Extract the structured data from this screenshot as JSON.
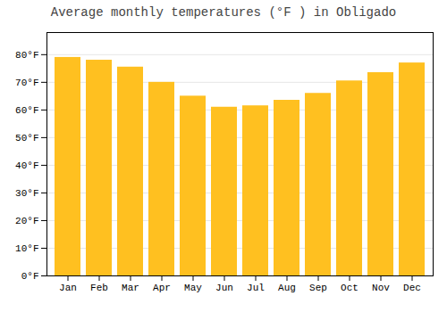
{
  "chart_data": {
    "type": "bar",
    "title": "Average monthly temperatures (°F ) in Obligado",
    "categories": [
      "Jan",
      "Feb",
      "Mar",
      "Apr",
      "May",
      "Jun",
      "Jul",
      "Aug",
      "Sep",
      "Oct",
      "Nov",
      "Dec"
    ],
    "values": [
      79,
      78,
      75.5,
      70,
      65,
      61,
      61.5,
      63.5,
      66,
      70.5,
      73.5,
      77
    ],
    "color": "#FFC020",
    "ylim": [
      0,
      88
    ],
    "yticks": [
      {
        "value": 0,
        "label": "0°F"
      },
      {
        "value": 10,
        "label": "10°F"
      },
      {
        "value": 20,
        "label": "20°F"
      },
      {
        "value": 30,
        "label": "30°F"
      },
      {
        "value": 40,
        "label": "40°F"
      },
      {
        "value": 50,
        "label": "50°F"
      },
      {
        "value": 60,
        "label": "60°F"
      },
      {
        "value": 70,
        "label": "70°F"
      },
      {
        "value": 80,
        "label": "80°F"
      }
    ],
    "grid": true
  }
}
